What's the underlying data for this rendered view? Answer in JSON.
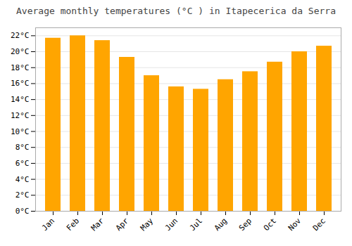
{
  "chart_data": {
    "type": "bar",
    "title": "Average monthly temperatures (°C ) in Itapecerica da Serra",
    "categories": [
      "Jan",
      "Feb",
      "Mar",
      "Apr",
      "May",
      "Jun",
      "Jul",
      "Aug",
      "Sep",
      "Oct",
      "Nov",
      "Dec"
    ],
    "values": [
      21.7,
      22.0,
      21.4,
      19.3,
      17.0,
      15.6,
      15.3,
      16.5,
      17.5,
      18.7,
      20.0,
      20.7
    ],
    "color": "#FFA500",
    "ylim": [
      0,
      23
    ],
    "yticks": [
      {
        "value": 0,
        "label": "0°C"
      },
      {
        "value": 2,
        "label": "2°C"
      },
      {
        "value": 4,
        "label": "4°C"
      },
      {
        "value": 6,
        "label": "6°C"
      },
      {
        "value": 8,
        "label": "8°C"
      },
      {
        "value": 10,
        "label": "10°C"
      },
      {
        "value": 12,
        "label": "12°C"
      },
      {
        "value": 14,
        "label": "14°C"
      },
      {
        "value": 16,
        "label": "16°C"
      },
      {
        "value": 18,
        "label": "18°C"
      },
      {
        "value": 20,
        "label": "20°C"
      },
      {
        "value": 22,
        "label": "22°C"
      }
    ],
    "grid": true
  }
}
